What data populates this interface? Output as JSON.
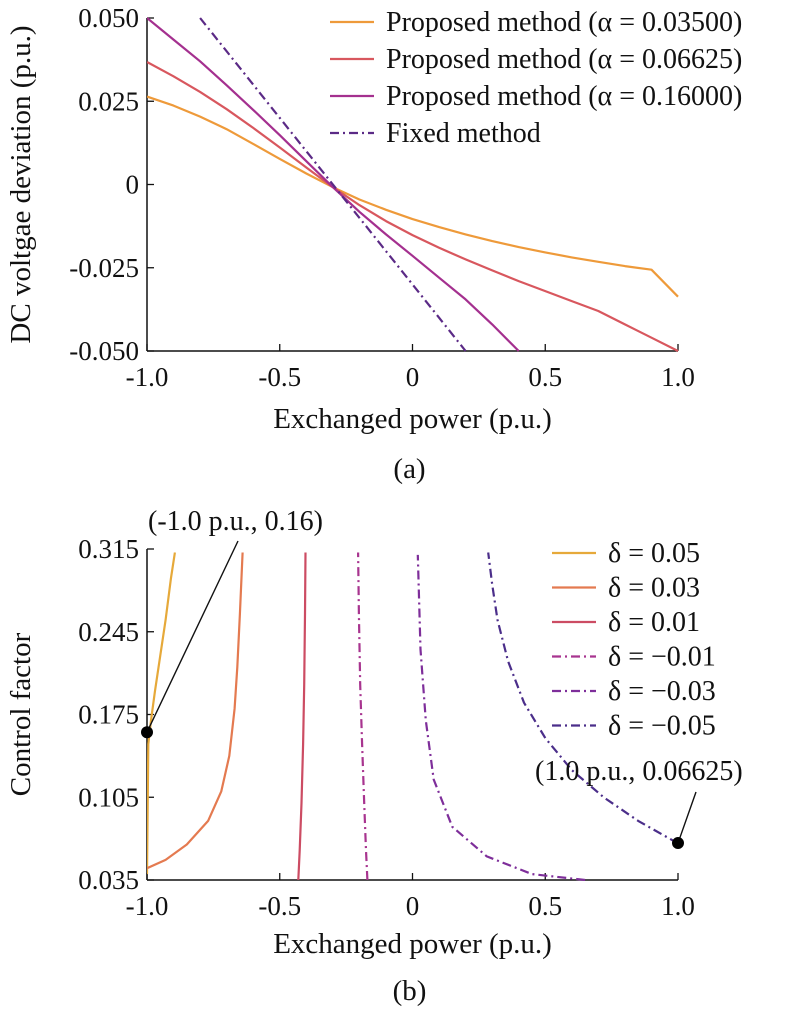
{
  "chart_data": [
    {
      "type": "line",
      "panel_label": "(a)",
      "xlabel": "Exchanged power (p.u.)",
      "ylabel": "DC voltgae deviation (p.u.)",
      "xlim": [
        -1.0,
        1.0
      ],
      "ylim": [
        -0.05,
        0.05
      ],
      "xticks": [
        "-1.0",
        "-0.5",
        "0",
        "0.5",
        "1.0"
      ],
      "xtick_values": [
        -1.0,
        -0.5,
        0,
        0.5,
        1.0
      ],
      "yticks": [
        "0.050",
        "0.025",
        "0",
        "-0.025",
        "-0.050"
      ],
      "ytick_values": [
        0.05,
        0.025,
        0,
        -0.025,
        -0.05
      ],
      "grid": false,
      "legend_position": "top-right",
      "series": [
        {
          "name": "Proposed method (α = 0.03500)",
          "color": "#EE9A3A",
          "dash": "solid",
          "x": [
            -1.0,
            -0.9,
            -0.8,
            -0.7,
            -0.6,
            -0.5,
            -0.4,
            -0.3,
            -0.2,
            -0.1,
            0.0,
            0.1,
            0.2,
            0.3,
            0.4,
            0.5,
            0.6,
            0.7,
            0.8,
            0.9,
            1.0
          ],
          "y": [
            0.0264,
            0.0237,
            0.0204,
            0.0166,
            0.0122,
            0.0077,
            0.0033,
            -0.0008,
            -0.0045,
            -0.0076,
            -0.0104,
            -0.0128,
            -0.015,
            -0.017,
            -0.0188,
            -0.0204,
            -0.0219,
            -0.0232,
            -0.0245,
            -0.0256,
            -0.0337
          ]
        },
        {
          "name": "Proposed method (α = 0.06625)",
          "color": "#D8575E",
          "dash": "solid",
          "x": [
            -1.0,
            -0.9,
            -0.8,
            -0.7,
            -0.6,
            -0.5,
            -0.4,
            -0.3,
            -0.2,
            -0.1,
            0.0,
            0.1,
            0.2,
            0.3,
            0.4,
            0.5,
            0.6,
            0.7,
            0.8,
            0.9,
            1.0
          ],
          "y": [
            0.0368,
            0.0325,
            0.0278,
            0.0226,
            0.017,
            0.0111,
            0.0051,
            -0.0008,
            -0.0062,
            -0.011,
            -0.0152,
            -0.019,
            -0.0225,
            -0.0258,
            -0.029,
            -0.032,
            -0.035,
            -0.038,
            -0.042,
            -0.046,
            -0.05
          ]
        },
        {
          "name": "Proposed method (α = 0.16000)",
          "color": "#A4308F",
          "dash": "solid",
          "x": [
            -1.0,
            -0.9,
            -0.8,
            -0.7,
            -0.6,
            -0.5,
            -0.4,
            -0.3,
            -0.2,
            -0.1,
            0.0,
            0.1,
            0.2,
            0.3,
            0.4
          ],
          "y": [
            0.05,
            0.0435,
            0.037,
            0.0298,
            0.0224,
            0.0148,
            0.007,
            -0.0008,
            -0.0082,
            -0.015,
            -0.0214,
            -0.028,
            -0.0345,
            -0.042,
            -0.05
          ]
        },
        {
          "name": "Fixed method",
          "color": "#5B2A86",
          "dash": "dashdot",
          "x": [
            -0.8,
            0.2
          ],
          "y": [
            0.05,
            -0.05
          ]
        }
      ]
    },
    {
      "type": "line",
      "panel_label": "(b)",
      "xlabel": "Exchanged power (p.u.)",
      "ylabel": "Control factor",
      "xlim": [
        -1.0,
        1.0
      ],
      "ylim": [
        0.035,
        0.315
      ],
      "xticks": [
        "-1.0",
        "-0.5",
        "0",
        "0.5",
        "1.0"
      ],
      "xtick_values": [
        -1.0,
        -0.5,
        0,
        0.5,
        1.0
      ],
      "yticks": [
        "0.315",
        "0.245",
        "0.175",
        "0.105",
        "0.035"
      ],
      "ytick_values": [
        0.315,
        0.245,
        0.175,
        0.105,
        0.035
      ],
      "grid": false,
      "legend_position": "top-right",
      "series": [
        {
          "name": "δ = 0.05",
          "color": "#E6A93A",
          "dash": "solid",
          "x": [
            -1.0,
            -0.995,
            -0.985,
            -0.97,
            -0.95,
            -0.93,
            -0.91,
            -0.895
          ],
          "y": [
            0.04,
            0.15,
            0.17,
            0.195,
            0.225,
            0.255,
            0.29,
            0.312
          ]
        },
        {
          "name": "δ = 0.03",
          "color": "#E47A50",
          "dash": "solid",
          "x": [
            -1.0,
            -0.93,
            -0.85,
            -0.77,
            -0.72,
            -0.69,
            -0.67,
            -0.66,
            -0.65,
            -0.64
          ],
          "y": [
            0.045,
            0.052,
            0.065,
            0.085,
            0.11,
            0.14,
            0.18,
            0.215,
            0.26,
            0.312
          ]
        },
        {
          "name": "δ = 0.01",
          "color": "#CC4C63",
          "dash": "solid",
          "x": [
            -0.43,
            -0.425,
            -0.418,
            -0.412,
            -0.408,
            -0.405,
            -0.403
          ],
          "y": [
            0.035,
            0.06,
            0.1,
            0.15,
            0.2,
            0.26,
            0.312
          ]
        },
        {
          "name": "δ = −0.01",
          "color": "#A8348F",
          "dash": "dashdot",
          "x": [
            -0.17,
            -0.175,
            -0.182,
            -0.19,
            -0.197,
            -0.202,
            -0.205
          ],
          "y": [
            0.035,
            0.06,
            0.1,
            0.15,
            0.2,
            0.26,
            0.312
          ]
        },
        {
          "name": "δ = −0.03",
          "color": "#7E2E9A",
          "dash": "dashdot",
          "x": [
            0.65,
            0.45,
            0.28,
            0.15,
            0.08,
            0.05,
            0.03,
            0.02
          ],
          "y": [
            0.035,
            0.04,
            0.055,
            0.08,
            0.12,
            0.17,
            0.23,
            0.31
          ]
        },
        {
          "name": "δ = −0.05",
          "color": "#4B2E8A",
          "dash": "dashdot",
          "x": [
            1.0,
            0.85,
            0.72,
            0.6,
            0.5,
            0.42,
            0.36,
            0.32,
            0.3,
            0.285
          ],
          "y": [
            0.066,
            0.085,
            0.105,
            0.128,
            0.155,
            0.185,
            0.22,
            0.255,
            0.285,
            0.312
          ]
        }
      ],
      "annotations": [
        {
          "text": "(-1.0 p.u., 0.16)",
          "x": -1.0,
          "y": 0.16
        },
        {
          "text": "(1.0 p.u., 0.06625)",
          "x": 1.0,
          "y": 0.06625
        }
      ]
    }
  ]
}
